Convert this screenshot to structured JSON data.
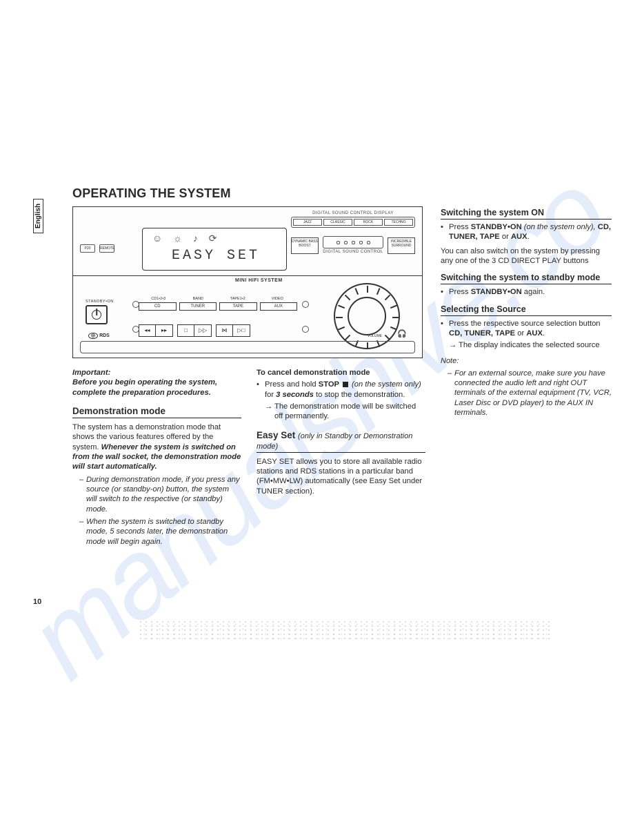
{
  "tab": "English",
  "title": "OPERATING THE SYSTEM",
  "pageNumber": "10",
  "watermark": "manualshive.co",
  "diagram": {
    "displayText": "EASY SET",
    "miniLabel": "MINI HIFI SYSTEM",
    "dscTitle": "DIGITAL SOUND CONTROL DISPLAY",
    "dsc": [
      "JAZZ",
      "CLASSIC",
      "ROCK",
      "TECHNO"
    ],
    "dbb": "DYNAMIC\nBASS BOOST",
    "surround": "INCREDIBLE\nSURROUND",
    "sliderLabel": "DIGITAL SOUND CONTROL",
    "leftBtns": [
      "P20",
      "REMOTE"
    ],
    "standbyLabel": "STANDBY•ON",
    "srcTop": [
      "CD1•2•3",
      "BAND",
      "TAPE1•2",
      "VIDEO"
    ],
    "srcBtns": [
      "CD",
      "TUNER",
      "TAPE",
      "AUX"
    ],
    "rds": "RDS",
    "volLabel": "VOLUME"
  },
  "col1": {
    "impHead": "Important:",
    "impBody": "Before you begin operating the system, complete the preparation procedures.",
    "demoTitle": "Demonstration mode",
    "demoP1a": "The system has a demonstration mode that shows the various features offered by the system.  ",
    "demoP1b": "Whenever the system is switched on from the wall socket, the demonstration mode will start automatically.",
    "demoLi1": "During demonstration mode, if you press any source (or standby-on) button, the system will switch to the respective (or standby) mode.",
    "demoLi2": "When the system is switched to standby mode, 5 seconds later, the demonstration mode will begin again."
  },
  "col2": {
    "cancelTitle": "To cancel demonstration mode",
    "cancelA": "Press and hold ",
    "cancelB": "STOP ",
    "cancelC": "(on the system only) ",
    "cancelD": "for ",
    "cancelE": "3 seconds ",
    "cancelF": "to stop the demonstration.",
    "cancelArrow": "The demonstration mode will be switched off permanently.",
    "easyTitleMain": "Easy Set ",
    "easyTitleParen": "(only in Standby or Demonstration mode)",
    "easyBody": "EASY SET allows you to store all available radio stations and RDS stations in a particular band (FM•MW•LW) automatically (see Easy Set under TUNER section)."
  },
  "col3": {
    "onTitle": "Switching the system ON",
    "onA": "Press ",
    "onB": "STANDBY•ON ",
    "onC": "(on the system only), ",
    "onD": "CD, TUNER, TAPE ",
    "onE": "or ",
    "onF": "AUX",
    "onG": ".",
    "onAlso": "You can also switch on the system by pressing any one of the 3 CD DIRECT PLAY buttons",
    "stbyTitle": "Switching the system to standby mode",
    "stbyA": "Press ",
    "stbyB": "STANDBY•ON ",
    "stbyC": "again.",
    "selTitle": "Selecting the Source",
    "selA": "Press the respective source selection button  ",
    "selB": "CD, TUNER, TAPE ",
    "selC": "or ",
    "selD": "AUX",
    "selE": ".",
    "selArrow": "The display indicates the selected source",
    "noteHead": "Note:",
    "noteBody": "For an external source, make sure you have connected the audio left and right OUT terminals of the external equipment (TV, VCR, Laser Disc or DVD player) to the AUX IN terminals."
  }
}
